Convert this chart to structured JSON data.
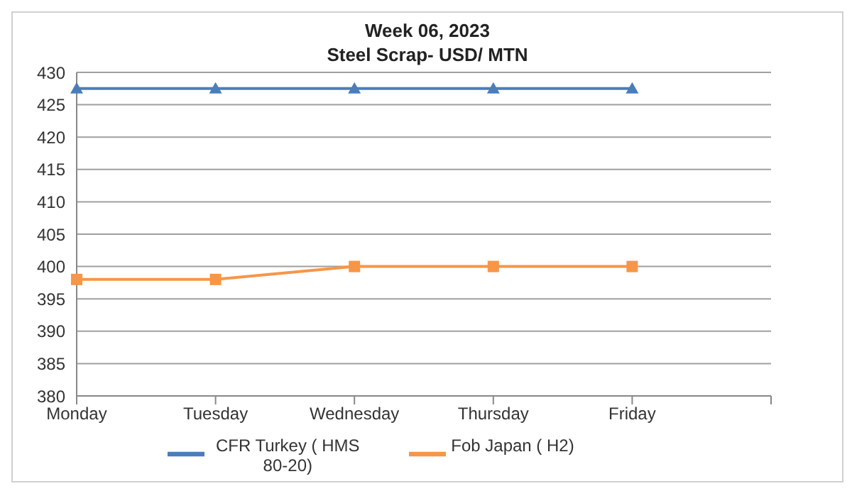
{
  "chart_data": {
    "type": "line",
    "title": "Week 06, 2023",
    "subtitle": "Steel Scrap- USD/ MTN",
    "categories": [
      "Monday",
      "Tuesday",
      "Wednesday",
      "Thursday",
      "Friday",
      null
    ],
    "series": [
      {
        "name": "CFR Turkey ( HMS 80-20)",
        "color": "#4a7ebb",
        "marker": "triangle",
        "values": [
          427.5,
          427.5,
          427.5,
          427.5,
          427.5,
          null
        ]
      },
      {
        "name": "Fob Japan ( H2)",
        "color": "#f79646",
        "marker": "square",
        "values": [
          398,
          398,
          400,
          400,
          400,
          null
        ]
      }
    ],
    "ylim": [
      380,
      430
    ],
    "yticks": [
      380,
      385,
      390,
      395,
      400,
      405,
      410,
      415,
      420,
      425,
      430
    ],
    "grid": "y",
    "legend": "bottom"
  }
}
